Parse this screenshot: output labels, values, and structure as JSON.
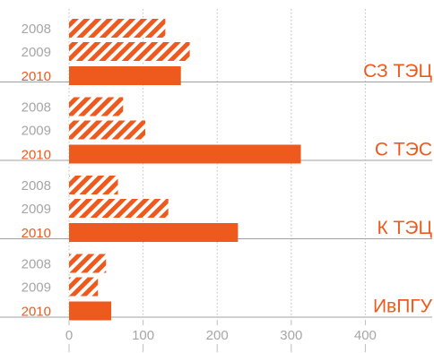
{
  "chart_data": {
    "type": "bar",
    "orientation": "horizontal",
    "title": "",
    "xlabel": "",
    "ylabel": "",
    "xlim": [
      0,
      490
    ],
    "xticks": [
      0,
      100,
      200,
      300,
      400
    ],
    "grid": true,
    "legend": "none",
    "groups": [
      {
        "name": "СЗ ТЭЦ",
        "bars": [
          {
            "year": "2008",
            "value": 130
          },
          {
            "year": "2009",
            "value": 163
          },
          {
            "year": "2010",
            "value": 151
          }
        ]
      },
      {
        "name": "С ТЭС",
        "bars": [
          {
            "year": "2008",
            "value": 73
          },
          {
            "year": "2009",
            "value": 103
          },
          {
            "year": "2010",
            "value": 313
          }
        ]
      },
      {
        "name": "К ТЭЦ",
        "bars": [
          {
            "year": "2008",
            "value": 66
          },
          {
            "year": "2009",
            "value": 134
          },
          {
            "year": "2010",
            "value": 228
          }
        ]
      },
      {
        "name": "ИвПГУ",
        "bars": [
          {
            "year": "2008",
            "value": 50
          },
          {
            "year": "2009",
            "value": 39
          },
          {
            "year": "2010",
            "value": 57
          }
        ]
      }
    ],
    "colors": {
      "accent": "#ee5a1e",
      "grid": "#bdbdbd",
      "year_label": "#a6a6a6",
      "separator": "#a0a0a0"
    },
    "hatched_years": [
      "2008",
      "2009"
    ],
    "solid_years": [
      "2010"
    ]
  }
}
